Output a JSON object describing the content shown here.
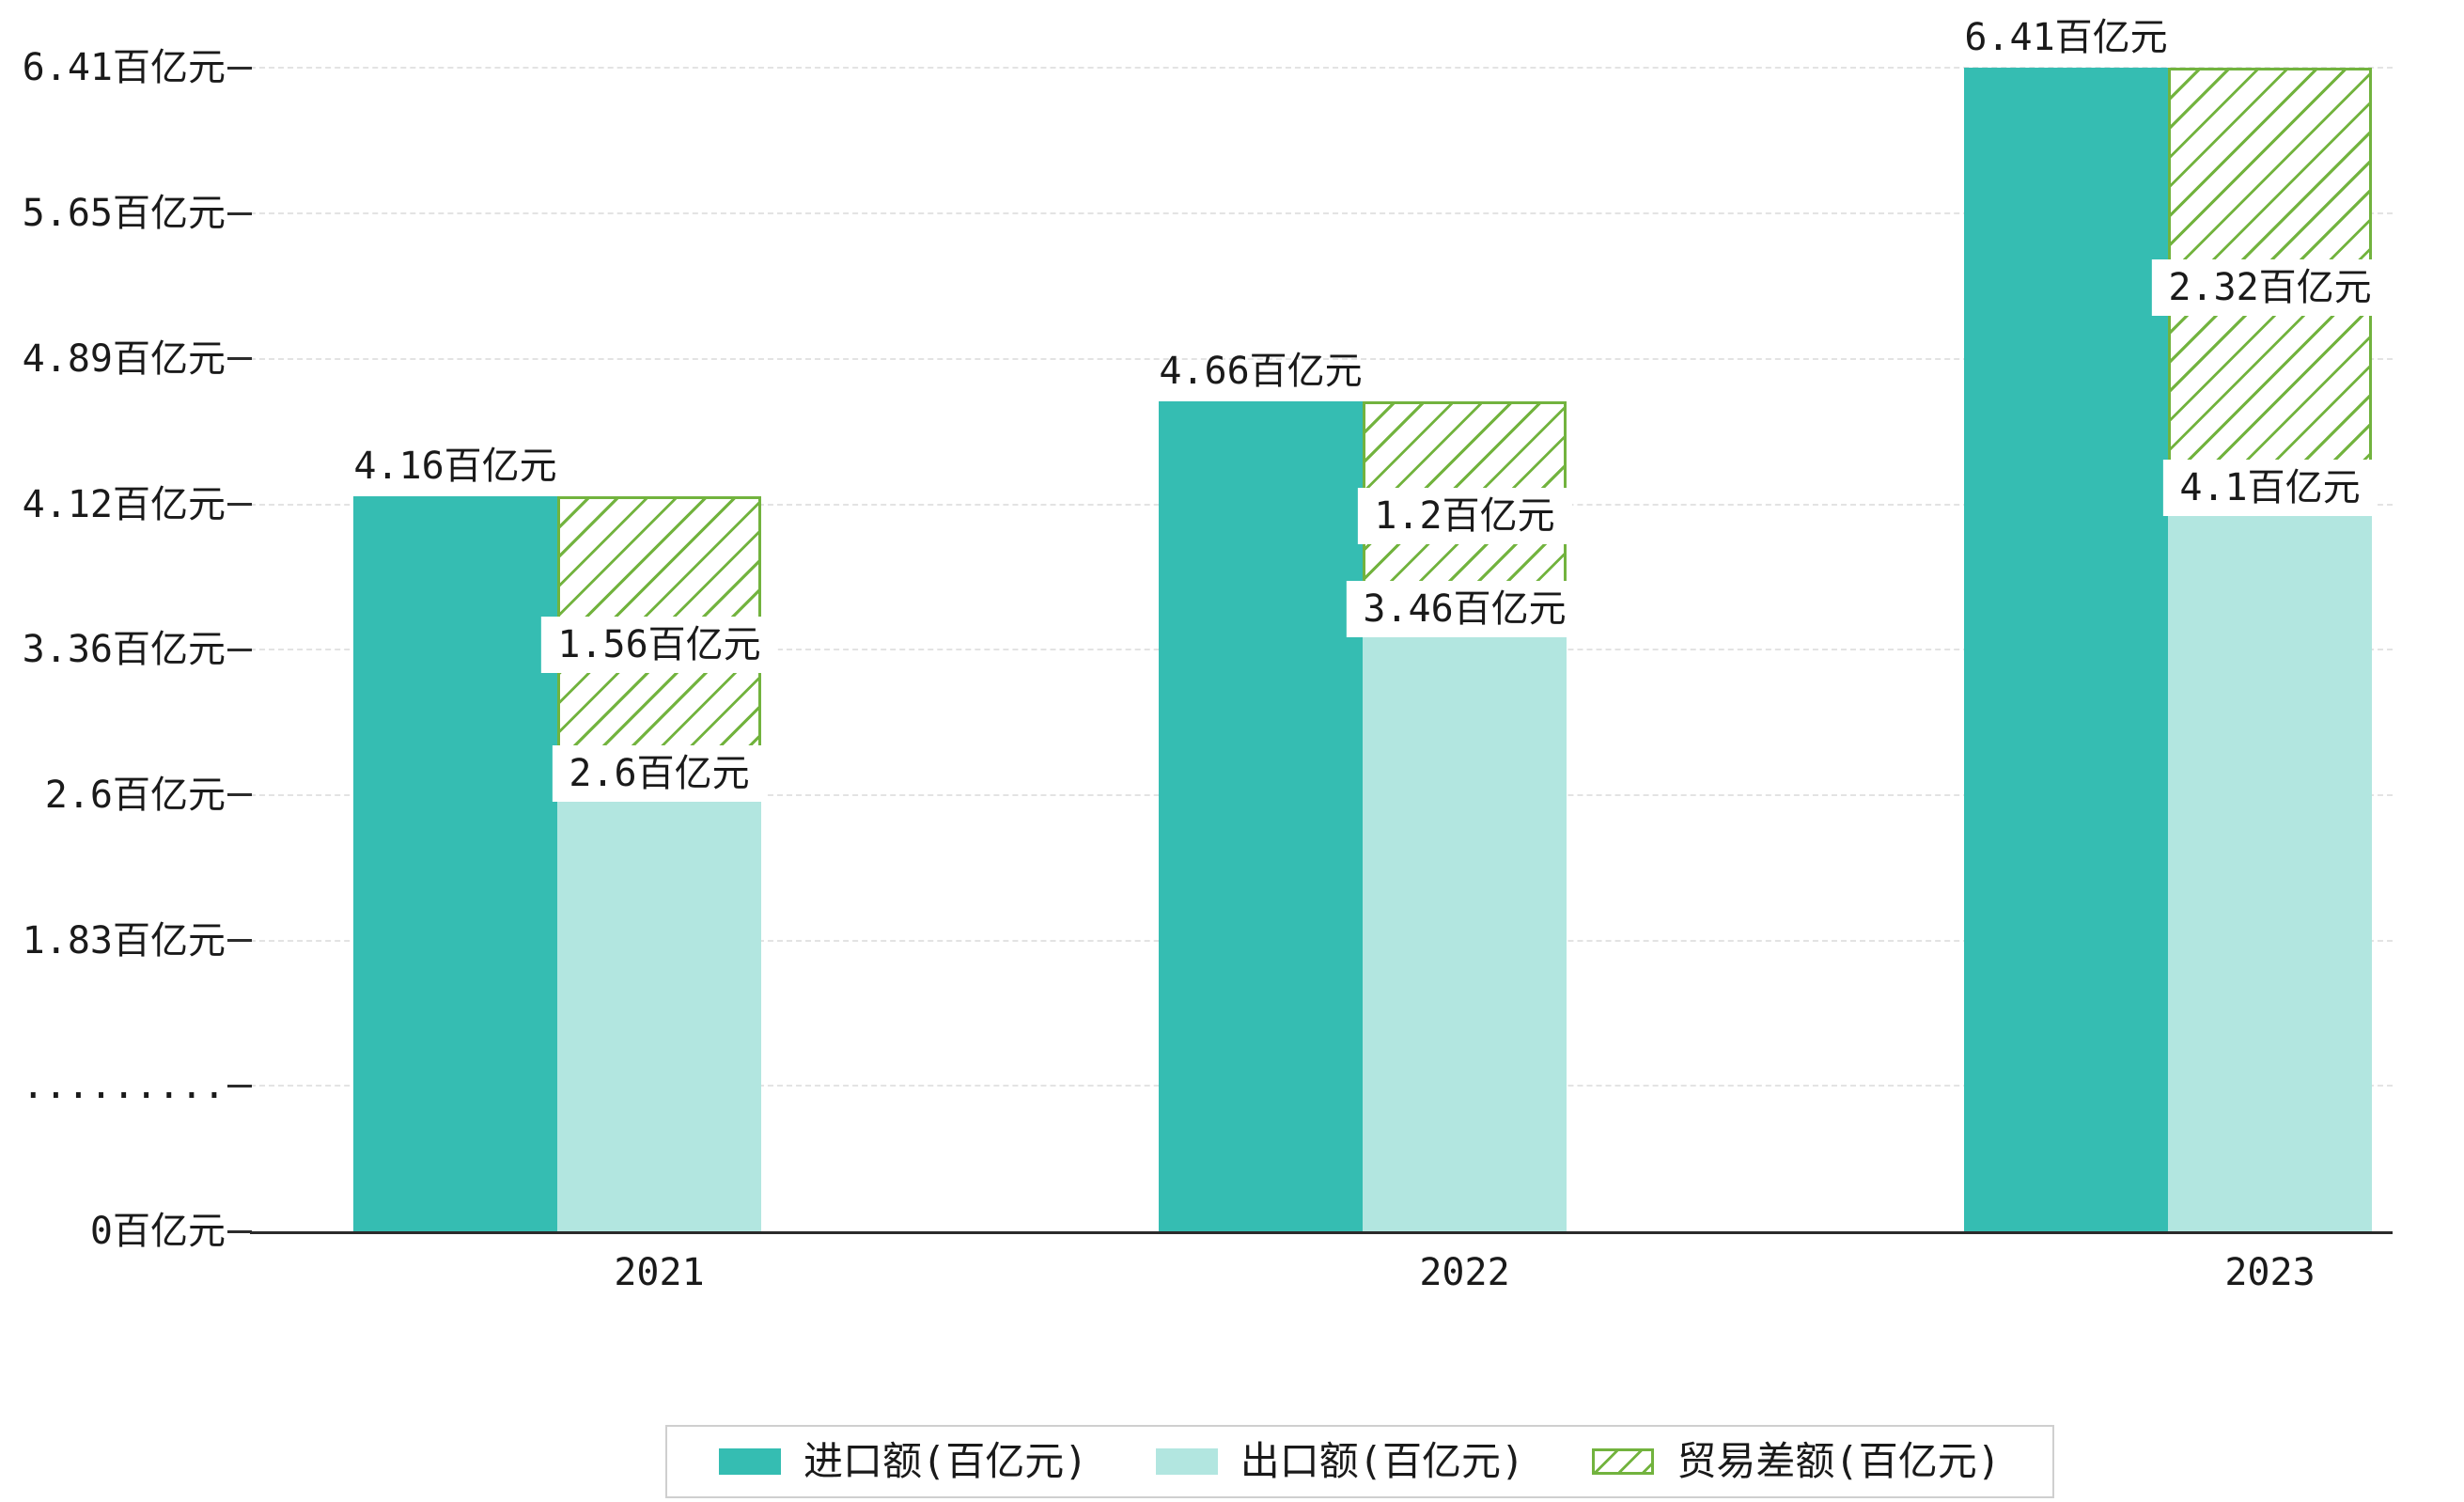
{
  "chart_data": {
    "type": "bar",
    "title": "",
    "xlabel": "",
    "ylabel": "",
    "unit": "百亿元",
    "categories": [
      "2021",
      "2022",
      "2023"
    ],
    "series": [
      {
        "name": "进口额(百亿元)",
        "values": [
          4.16,
          4.66,
          6.41
        ],
        "labels": [
          "4.16百亿元",
          "4.66百亿元",
          "6.41百亿元"
        ],
        "color": "#35bdb2",
        "style": "solid"
      },
      {
        "name": "出口额(百亿元)",
        "values": [
          2.6,
          3.46,
          4.1
        ],
        "labels": [
          "2.6百亿元",
          "3.46百亿元",
          "4.1百亿元"
        ],
        "color": "#b2e6e0",
        "style": "solid"
      },
      {
        "name": "贸易差额(百亿元)",
        "values": [
          1.56,
          1.2,
          2.32
        ],
        "labels": [
          "1.56百亿元",
          "1.2百亿元",
          "2.32百亿元"
        ],
        "color": "#72b33e",
        "style": "hatched",
        "rendering": "stacked on export bar, spanning from export value up to import value"
      }
    ],
    "y_ticks": [
      "0百亿元",
      ".........",
      "1.83百亿元",
      "2.6百亿元",
      "3.36百亿元",
      "4.12百亿元",
      "4.89百亿元",
      "5.65百亿元",
      "6.41百亿元"
    ],
    "y_tick_values": [
      0,
      null,
      1.83,
      2.6,
      3.36,
      4.12,
      4.89,
      5.65,
      6.41
    ],
    "ylim": [
      0,
      6.41
    ],
    "axis_break": true,
    "grid": true,
    "legend_position": "bottom"
  },
  "colors": {
    "background": "#ffffff",
    "axis": "#2b2b2b",
    "grid": "#e3e3e3",
    "text": "#1a1a1a",
    "legend_border": "#cfcfcf"
  }
}
